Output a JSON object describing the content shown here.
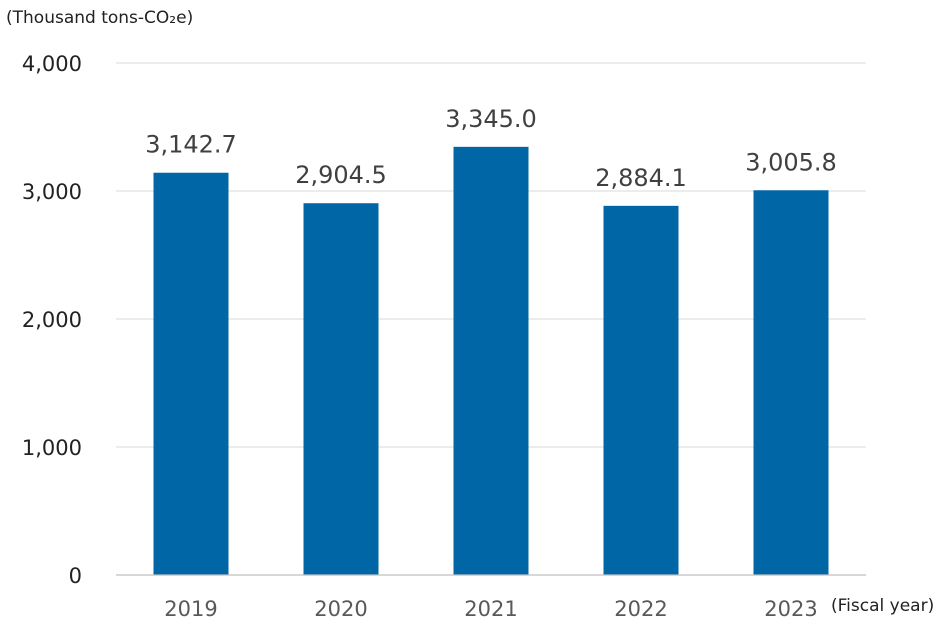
{
  "chart_data": {
    "type": "bar",
    "title": "",
    "ylabel": "(Thousand tons-CO₂e)",
    "xlabel": "(Fiscal year)",
    "categories": [
      "2019",
      "2020",
      "2021",
      "2022",
      "2023"
    ],
    "values": [
      3142.7,
      2904.5,
      3345.0,
      2884.1,
      3005.8
    ],
    "data_labels": [
      "3,142.7",
      "2,904.5",
      "3,345.0",
      "2,884.1",
      "3,005.8"
    ],
    "ylim": [
      0,
      4000
    ],
    "yticks": [
      0,
      1000,
      2000,
      3000,
      4000
    ],
    "ytick_labels": [
      "0",
      "1,000",
      "2,000",
      "3,000",
      "4,000"
    ],
    "grid": true,
    "legend": "none",
    "bar_color": "#0066a6"
  }
}
